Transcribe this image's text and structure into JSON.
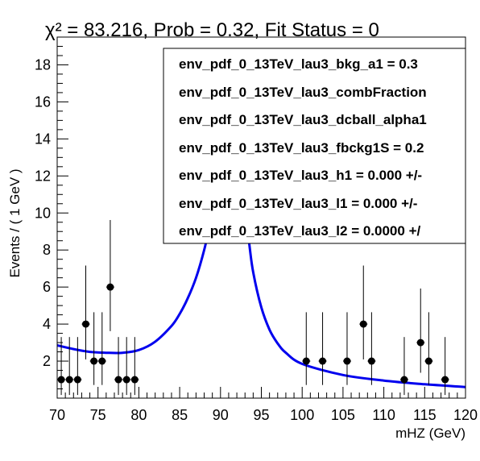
{
  "chart_data": {
    "type": "scatter",
    "title": "χ² = 83.216, Prob = 0.32, Fit Status = 0",
    "xlabel": "mHZ (GeV)",
    "ylabel": "Events / ( 1 GeV )",
    "xlim": [
      70,
      120
    ],
    "ylim": [
      0,
      19.5
    ],
    "xticks": [
      70,
      75,
      80,
      85,
      90,
      95,
      100,
      105,
      110,
      115,
      120
    ],
    "yticks": [
      2,
      4,
      6,
      8,
      10,
      12,
      14,
      16,
      18
    ],
    "grid": false,
    "legend_position": "top-right",
    "colors": {
      "fit": "#0000ee",
      "data": "#000000"
    },
    "series": [
      {
        "kind": "data",
        "x": [
          70.5,
          71.5,
          72.5,
          73.5,
          74.5,
          75.5,
          76.5,
          77.5,
          78.5,
          79.5,
          100.5,
          102.5,
          105.5,
          107.5,
          108.5,
          112.5,
          114.5,
          115.5,
          117.5
        ],
        "y": [
          1,
          1,
          1,
          4,
          2,
          2,
          6,
          1,
          1,
          1,
          2,
          2,
          2,
          4,
          2,
          1,
          3,
          2,
          1
        ],
        "yerr_low": [
          0.83,
          0.83,
          0.83,
          1.91,
          1.29,
          1.29,
          2.38,
          0.83,
          0.83,
          0.83,
          1.29,
          1.29,
          1.29,
          1.91,
          1.29,
          0.83,
          1.63,
          1.29,
          0.83
        ],
        "yerr_high": [
          2.3,
          2.3,
          2.3,
          3.16,
          2.64,
          2.64,
          3.62,
          2.3,
          2.3,
          2.3,
          2.64,
          2.64,
          2.64,
          3.16,
          2.64,
          2.3,
          2.92,
          2.64,
          2.3
        ]
      },
      {
        "kind": "fit",
        "x": [
          70,
          72,
          74,
          76,
          78,
          80,
          82,
          84,
          85,
          86,
          87,
          88,
          88.5,
          89,
          93,
          93.5,
          94,
          95,
          96,
          97,
          98,
          100,
          105,
          110,
          115,
          120
        ],
        "y": [
          2.85,
          2.65,
          2.5,
          2.45,
          2.45,
          2.6,
          3.05,
          3.9,
          4.55,
          5.4,
          6.5,
          8.0,
          9.0,
          10.2,
          10.2,
          8.4,
          6.8,
          4.9,
          3.7,
          2.95,
          2.45,
          1.85,
          1.25,
          0.95,
          0.75,
          0.6
        ]
      }
    ],
    "legend": [
      "env_pdf_0_13TeV_lau3_bkg_a1 =  0.3",
      "env_pdf_0_13TeV_lau3_combFraction",
      "env_pdf_0_13TeV_lau3_dcball_alpha1",
      "env_pdf_0_13TeV_lau3_fbckg1S =  0.2",
      "env_pdf_0_13TeV_lau3_h1 =  0.000 +/-",
      "env_pdf_0_13TeV_lau3_l1 =  0.000 +/-",
      "env_pdf_0_13TeV_lau3_l2 =  0.0000 +/"
    ]
  }
}
